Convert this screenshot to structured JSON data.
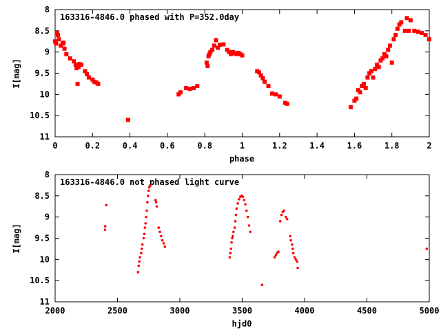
{
  "chart_data": [
    {
      "type": "scatter",
      "title": "163316-4846.0 phased with P=352.0day",
      "xlabel": "phase",
      "ylabel": "I[mag]",
      "xlim": [
        0,
        2
      ],
      "ylim": [
        8,
        11
      ],
      "y_inverted": true,
      "xticks": [
        0,
        0.2,
        0.4,
        0.6,
        0.8,
        1,
        1.2,
        1.4,
        1.6,
        1.8,
        2
      ],
      "xtick_labels": [
        "0",
        "0.2",
        "0.4",
        "0.6",
        "0.8",
        "1",
        "1.2",
        "1.4",
        "1.6",
        "1.8",
        "2"
      ],
      "yticks": [
        8,
        8.5,
        9,
        9.5,
        10,
        10.5,
        11
      ],
      "ytick_labels": [
        "8",
        "8.5",
        "9",
        "9.5",
        "10",
        "10.5",
        "11"
      ],
      "marker_color": "#ff0000",
      "grid": false,
      "points": [
        [
          0.0,
          8.75
        ],
        [
          0.005,
          8.8
        ],
        [
          0.01,
          8.55
        ],
        [
          0.015,
          8.6
        ],
        [
          0.02,
          8.7
        ],
        [
          0.03,
          8.85
        ],
        [
          0.04,
          8.8
        ],
        [
          0.045,
          8.78
        ],
        [
          0.05,
          8.92
        ],
        [
          0.06,
          9.05
        ],
        [
          0.08,
          9.15
        ],
        [
          0.1,
          9.22
        ],
        [
          0.11,
          9.3
        ],
        [
          0.115,
          9.38
        ],
        [
          0.12,
          9.75
        ],
        [
          0.125,
          9.35
        ],
        [
          0.13,
          9.28
        ],
        [
          0.14,
          9.3
        ],
        [
          0.16,
          9.45
        ],
        [
          0.17,
          9.52
        ],
        [
          0.18,
          9.6
        ],
        [
          0.2,
          9.65
        ],
        [
          0.21,
          9.7
        ],
        [
          0.22,
          9.72
        ],
        [
          0.23,
          9.75
        ],
        [
          0.39,
          10.6
        ],
        [
          0.66,
          10.0
        ],
        [
          0.67,
          9.95
        ],
        [
          0.7,
          9.85
        ],
        [
          0.72,
          9.87
        ],
        [
          0.74,
          9.85
        ],
        [
          0.76,
          9.8
        ],
        [
          0.81,
          9.25
        ],
        [
          0.815,
          9.33
        ],
        [
          0.82,
          9.1
        ],
        [
          0.825,
          9.05
        ],
        [
          0.83,
          9.0
        ],
        [
          0.84,
          8.95
        ],
        [
          0.85,
          8.85
        ],
        [
          0.86,
          8.72
        ],
        [
          0.87,
          8.9
        ],
        [
          0.88,
          8.83
        ],
        [
          0.9,
          8.82
        ],
        [
          0.92,
          8.95
        ],
        [
          0.93,
          9.0
        ],
        [
          0.94,
          9.05
        ],
        [
          0.95,
          9.0
        ],
        [
          0.96,
          9.03
        ],
        [
          0.97,
          9.05
        ],
        [
          0.98,
          9.02
        ],
        [
          0.99,
          9.05
        ],
        [
          1.0,
          9.08
        ],
        [
          1.08,
          9.45
        ],
        [
          1.09,
          9.48
        ],
        [
          1.1,
          9.55
        ],
        [
          1.11,
          9.62
        ],
        [
          1.12,
          9.7
        ],
        [
          1.14,
          9.8
        ],
        [
          1.16,
          9.98
        ],
        [
          1.18,
          10.0
        ],
        [
          1.2,
          10.05
        ],
        [
          1.23,
          10.2
        ],
        [
          1.24,
          10.22
        ],
        [
          1.58,
          10.3
        ],
        [
          1.6,
          10.15
        ],
        [
          1.61,
          10.1
        ],
        [
          1.62,
          9.9
        ],
        [
          1.63,
          9.95
        ],
        [
          1.64,
          9.8
        ],
        [
          1.65,
          9.75
        ],
        [
          1.66,
          9.85
        ],
        [
          1.67,
          9.6
        ],
        [
          1.68,
          9.5
        ],
        [
          1.69,
          9.45
        ],
        [
          1.7,
          9.6
        ],
        [
          1.71,
          9.4
        ],
        [
          1.72,
          9.3
        ],
        [
          1.73,
          9.35
        ],
        [
          1.74,
          9.2
        ],
        [
          1.75,
          9.15
        ],
        [
          1.76,
          9.05
        ],
        [
          1.77,
          9.1
        ],
        [
          1.78,
          8.95
        ],
        [
          1.79,
          8.85
        ],
        [
          1.8,
          9.25
        ],
        [
          1.81,
          8.7
        ],
        [
          1.82,
          8.6
        ],
        [
          1.83,
          8.45
        ],
        [
          1.84,
          8.35
        ],
        [
          1.85,
          8.3
        ],
        [
          1.87,
          8.5
        ],
        [
          1.88,
          8.2
        ],
        [
          1.89,
          8.5
        ],
        [
          1.9,
          8.25
        ],
        [
          1.92,
          8.5
        ],
        [
          1.94,
          8.52
        ],
        [
          1.96,
          8.55
        ],
        [
          1.98,
          8.6
        ],
        [
          2.0,
          8.7
        ]
      ]
    },
    {
      "type": "scatter",
      "title": "163316-4846.0 not phased light curve",
      "xlabel": "hjd0",
      "ylabel": "I[mag]",
      "xlim": [
        2000,
        5000
      ],
      "ylim": [
        8,
        11
      ],
      "y_inverted": true,
      "xticks": [
        2000,
        2500,
        3000,
        3500,
        4000,
        4500,
        5000
      ],
      "xtick_labels": [
        "2000",
        "2500",
        "3000",
        "3500",
        "4000",
        "4500",
        "5000"
      ],
      "yticks": [
        8,
        8.5,
        9,
        9.5,
        10,
        10.5,
        11
      ],
      "ytick_labels": [
        "8",
        "8.5",
        "9",
        "9.5",
        "10",
        "10.5",
        "11"
      ],
      "marker_color": "#ff0000",
      "grid": false,
      "points": [
        [
          2400,
          9.3
        ],
        [
          2402,
          9.22
        ],
        [
          2410,
          8.72
        ],
        [
          2665,
          10.3
        ],
        [
          2670,
          10.15
        ],
        [
          2675,
          10.05
        ],
        [
          2680,
          9.95
        ],
        [
          2690,
          9.85
        ],
        [
          2695,
          9.75
        ],
        [
          2700,
          9.65
        ],
        [
          2710,
          9.5
        ],
        [
          2715,
          9.4
        ],
        [
          2720,
          9.25
        ],
        [
          2725,
          9.15
        ],
        [
          2730,
          9.0
        ],
        [
          2735,
          8.85
        ],
        [
          2740,
          8.65
        ],
        [
          2745,
          8.5
        ],
        [
          2750,
          8.38
        ],
        [
          2755,
          8.3
        ],
        [
          2760,
          8.26
        ],
        [
          2805,
          8.6
        ],
        [
          2810,
          8.65
        ],
        [
          2815,
          8.75
        ],
        [
          2830,
          9.25
        ],
        [
          2840,
          9.35
        ],
        [
          2850,
          9.45
        ],
        [
          2860,
          9.55
        ],
        [
          2870,
          9.62
        ],
        [
          2880,
          9.7
        ],
        [
          3400,
          9.95
        ],
        [
          3405,
          9.85
        ],
        [
          3410,
          9.75
        ],
        [
          3415,
          9.6
        ],
        [
          3420,
          9.5
        ],
        [
          3425,
          9.45
        ],
        [
          3430,
          9.35
        ],
        [
          3440,
          9.25
        ],
        [
          3445,
          9.1
        ],
        [
          3450,
          8.95
        ],
        [
          3455,
          8.8
        ],
        [
          3465,
          8.68
        ],
        [
          3475,
          8.58
        ],
        [
          3485,
          8.52
        ],
        [
          3495,
          8.5
        ],
        [
          3505,
          8.52
        ],
        [
          3515,
          8.6
        ],
        [
          3525,
          8.7
        ],
        [
          3535,
          8.85
        ],
        [
          3545,
          9.0
        ],
        [
          3555,
          9.2
        ],
        [
          3565,
          9.35
        ],
        [
          3660,
          10.6
        ],
        [
          3760,
          9.95
        ],
        [
          3770,
          9.9
        ],
        [
          3780,
          9.85
        ],
        [
          3790,
          9.82
        ],
        [
          3805,
          9.1
        ],
        [
          3815,
          8.95
        ],
        [
          3825,
          8.88
        ],
        [
          3835,
          8.85
        ],
        [
          3850,
          9.0
        ],
        [
          3860,
          9.05
        ],
        [
          3885,
          9.45
        ],
        [
          3890,
          9.55
        ],
        [
          3900,
          9.65
        ],
        [
          3905,
          9.75
        ],
        [
          3910,
          9.85
        ],
        [
          3920,
          9.95
        ],
        [
          3930,
          10.0
        ],
        [
          3940,
          10.05
        ],
        [
          3945,
          10.2
        ],
        [
          4980,
          9.75
        ]
      ]
    }
  ]
}
